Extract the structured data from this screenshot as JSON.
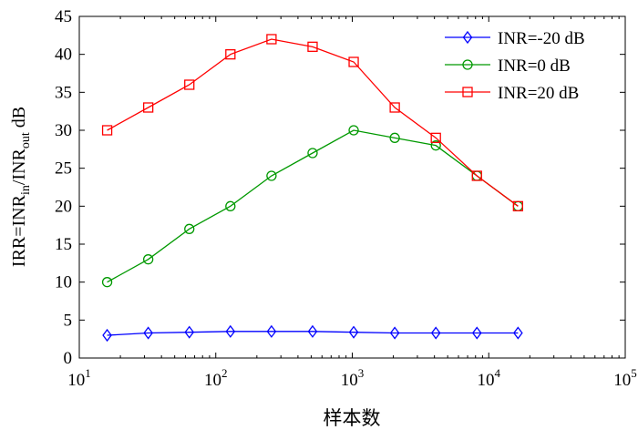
{
  "chart_data": {
    "type": "line",
    "xlabel": "样本数",
    "ylabel": {
      "base": "IRR=INR",
      "sub_in": "in",
      "mid": "/INR",
      "sub_out": "out",
      "unit": " dB"
    },
    "x_scale": "log",
    "xlim": [
      10,
      100000
    ],
    "ylim": [
      0,
      45
    ],
    "x_ticks": [
      {
        "value": 10,
        "base": "10",
        "exp": "1"
      },
      {
        "value": 100,
        "base": "10",
        "exp": "2"
      },
      {
        "value": 1000,
        "base": "10",
        "exp": "3"
      },
      {
        "value": 10000,
        "base": "10",
        "exp": "4"
      },
      {
        "value": 100000,
        "base": "10",
        "exp": "5"
      }
    ],
    "y_ticks": [
      0,
      5,
      10,
      15,
      20,
      25,
      30,
      35,
      40,
      45
    ],
    "grid": false,
    "legend_position": "top-right",
    "x": [
      16,
      32,
      64,
      128,
      256,
      512,
      1024,
      2048,
      4096,
      8192,
      16384
    ],
    "series": [
      {
        "name": "INR=-20 dB",
        "color": "#0000ff",
        "marker": "diamond",
        "values": [
          3.0,
          3.3,
          3.4,
          3.5,
          3.5,
          3.5,
          3.4,
          3.3,
          3.3,
          3.3,
          3.3
        ]
      },
      {
        "name": "INR=0 dB",
        "color": "#009900",
        "marker": "circle",
        "values": [
          10,
          13,
          17,
          20,
          24,
          27,
          30,
          29,
          28,
          24,
          20
        ]
      },
      {
        "name": "INR=20 dB",
        "color": "#ff0000",
        "marker": "square",
        "values": [
          30,
          33,
          36,
          40,
          42,
          41,
          39,
          33,
          29,
          24,
          20
        ]
      }
    ]
  }
}
